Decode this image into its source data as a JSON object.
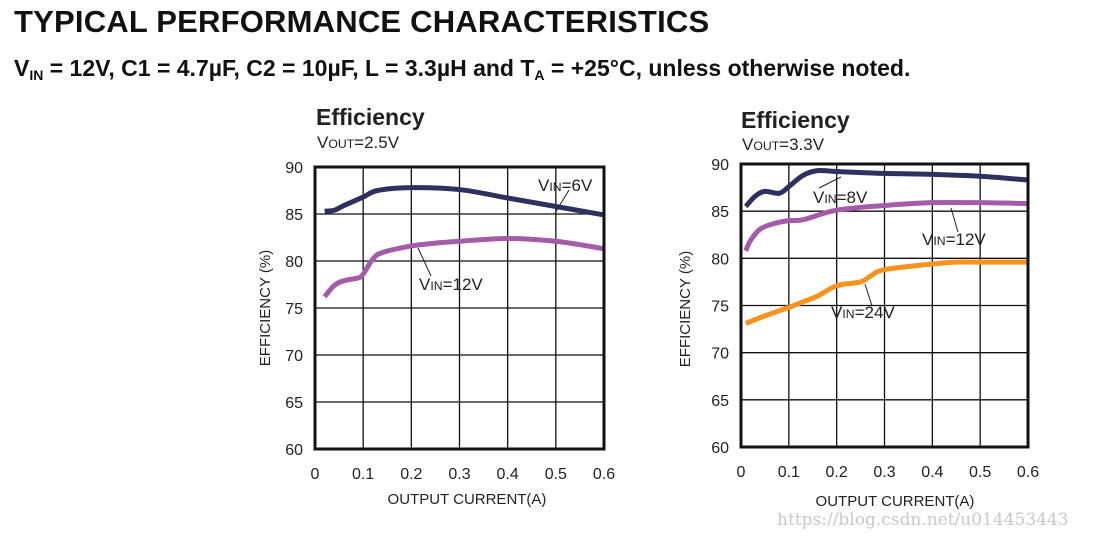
{
  "header": {
    "title": "TYPICAL PERFORMANCE CHARACTERISTICS",
    "conditions": {
      "v_label": "V",
      "v_sub": "IN",
      "part1": " = 12V, C1 = 4.7µF, C2 = 10µF, L = 3.3µH and T",
      "t_sub": "A",
      "part2": " = +25°C, unless otherwise noted."
    }
  },
  "watermark": "https://blog.csdn.net/u014453443",
  "chart_data": [
    {
      "type": "line",
      "title": "Efficiency",
      "subtitle": "VOUT=2.5V",
      "xlabel": "OUTPUT CURRENT(A)",
      "ylabel": "EFFICIENCY (%)",
      "xlim": [
        0,
        0.6
      ],
      "ylim": [
        60,
        90
      ],
      "xticks": [
        "0",
        "0.1",
        "0.2",
        "0.3",
        "0.4",
        "0.5",
        "0.6"
      ],
      "yticks": [
        "60",
        "65",
        "70",
        "75",
        "80",
        "85",
        "90"
      ],
      "grid": true,
      "series": [
        {
          "name": "VIN=6V",
          "color": "#2e3060",
          "x": [
            0.02,
            0.04,
            0.06,
            0.1,
            0.13,
            0.2,
            0.3,
            0.4,
            0.5,
            0.6
          ],
          "y": [
            85.3,
            85.4,
            85.9,
            86.8,
            87.5,
            87.8,
            87.6,
            86.7,
            85.8,
            84.9
          ]
        },
        {
          "name": "VIN=12V",
          "color": "#a55ca8",
          "x": [
            0.02,
            0.04,
            0.06,
            0.09,
            0.1,
            0.12,
            0.14,
            0.2,
            0.25,
            0.3,
            0.4,
            0.5,
            0.6
          ],
          "y": [
            76.2,
            77.4,
            77.9,
            78.2,
            78.6,
            80.2,
            80.9,
            81.6,
            81.9,
            82.1,
            82.4,
            82.1,
            81.3
          ]
        }
      ],
      "annotations": [
        {
          "text": "VIN=6V",
          "series": "VIN=6V"
        },
        {
          "text": "VIN=12V",
          "series": "VIN=12V"
        }
      ]
    },
    {
      "type": "line",
      "title": "Efficiency",
      "subtitle": "VOUT=3.3V",
      "xlabel": "OUTPUT CURRENT(A)",
      "ylabel": "EFFICIENCY (%)",
      "xlim": [
        0,
        0.6
      ],
      "ylim": [
        60,
        90
      ],
      "xticks": [
        "0",
        "0.1",
        "0.2",
        "0.3",
        "0.4",
        "0.5",
        "0.6"
      ],
      "yticks": [
        "60",
        "65",
        "70",
        "75",
        "80",
        "85",
        "90"
      ],
      "grid": true,
      "series": [
        {
          "name": "VIN=8V",
          "color": "#2e3060",
          "x": [
            0.01,
            0.03,
            0.05,
            0.08,
            0.1,
            0.13,
            0.16,
            0.2,
            0.3,
            0.4,
            0.5,
            0.6
          ],
          "y": [
            85.5,
            86.6,
            87.1,
            86.9,
            87.6,
            88.8,
            89.3,
            89.2,
            89.0,
            88.9,
            88.7,
            88.3
          ]
        },
        {
          "name": "VIN=12V",
          "color": "#a55ca8",
          "x": [
            0.01,
            0.02,
            0.04,
            0.07,
            0.1,
            0.13,
            0.2,
            0.3,
            0.4,
            0.5,
            0.6
          ],
          "y": [
            80.8,
            81.9,
            83.1,
            83.7,
            84.0,
            84.1,
            85.1,
            85.6,
            85.9,
            85.9,
            85.8
          ]
        },
        {
          "name": "VIN=24V",
          "color": "#f7941d",
          "x": [
            0.01,
            0.05,
            0.1,
            0.13,
            0.16,
            0.2,
            0.25,
            0.27,
            0.3,
            0.4,
            0.45,
            0.5,
            0.6
          ],
          "y": [
            73.1,
            73.9,
            74.8,
            75.4,
            76.0,
            77.1,
            77.5,
            78.1,
            78.8,
            79.4,
            79.6,
            79.6,
            79.6
          ]
        }
      ],
      "annotations": [
        {
          "text": "VIN=8V",
          "series": "VIN=8V"
        },
        {
          "text": "VIN=12V",
          "series": "VIN=12V"
        },
        {
          "text": "VIN=24V",
          "series": "VIN=24V"
        }
      ]
    }
  ]
}
